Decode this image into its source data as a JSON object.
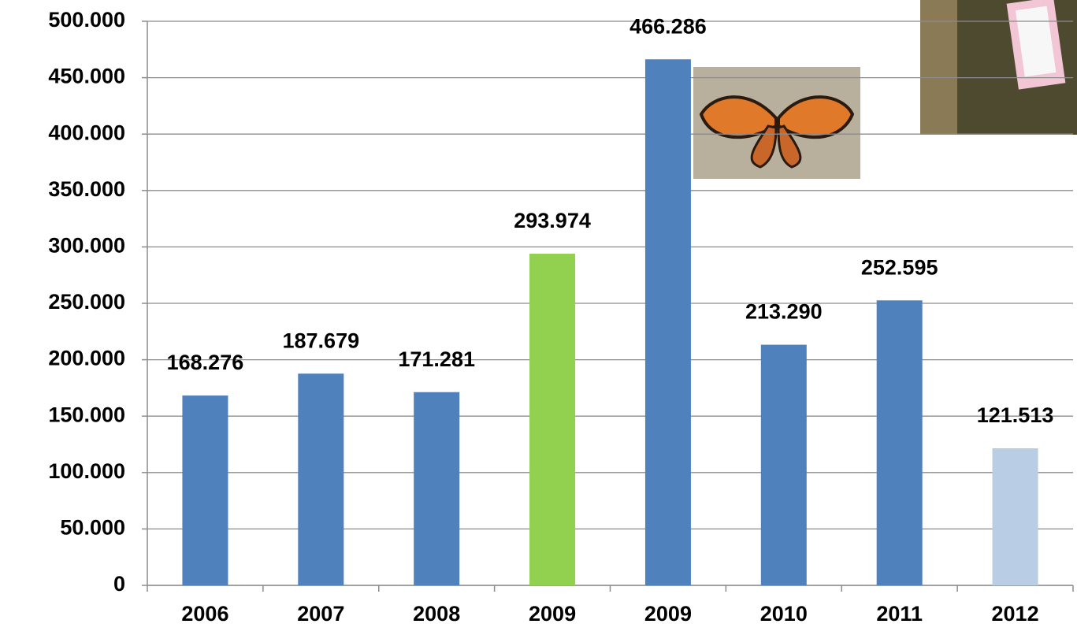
{
  "chart_data": {
    "type": "bar",
    "categories": [
      "2006",
      "2007",
      "2008",
      "2009",
      "2009",
      "2010",
      "2011",
      "2012"
    ],
    "values": [
      168276,
      187679,
      171281,
      293974,
      466286,
      213290,
      252595,
      121513
    ],
    "value_labels": [
      "168.276",
      "187.679",
      "171.281",
      "293.974",
      "466.286",
      "213.290",
      "252.595",
      "121.513"
    ],
    "colors": [
      "#4f81bd",
      "#4f81bd",
      "#4f81bd",
      "#92d050",
      "#4f81bd",
      "#4f81bd",
      "#4f81bd",
      "#b9cde5"
    ],
    "ylim": [
      0,
      500000
    ],
    "yticks": [
      0,
      {
        "value": 50000,
        "label": "50.000"
      },
      {
        "value": 100000,
        "label": "100.000"
      },
      {
        "value": 150000,
        "label": "150.000"
      },
      {
        "value": 200000,
        "label": "200.000"
      },
      {
        "value": 250000,
        "label": "250.000"
      },
      {
        "value": 300000,
        "label": "300.000"
      },
      {
        "value": 350000,
        "label": "350.000"
      },
      {
        "value": 400000,
        "label": "400.000"
      },
      {
        "value": 450000,
        "label": "450.000"
      },
      {
        "value": 500000,
        "label": "500.000"
      }
    ],
    "grid": true
  }
}
